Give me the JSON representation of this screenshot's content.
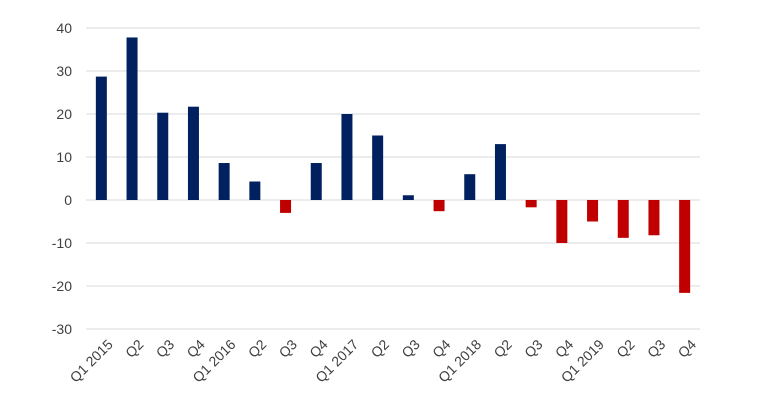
{
  "chart_data": {
    "type": "bar",
    "title": "",
    "xlabel": "",
    "ylabel": "",
    "categories": [
      "Q1 2015",
      "Q2",
      "Q3",
      "Q4",
      "Q1 2016",
      "Q2",
      "Q3",
      "Q4",
      "Q1 2017",
      "Q2",
      "Q3",
      "Q4",
      "Q1 2018",
      "Q2",
      "Q3",
      "Q4",
      "Q1 2019",
      "Q2",
      "Q3",
      "Q4"
    ],
    "values": [
      28.7,
      37.8,
      20.3,
      21.7,
      8.6,
      4.3,
      -3.0,
      8.6,
      20.0,
      15.0,
      1.1,
      -2.6,
      6.0,
      13.0,
      -1.7,
      -10.0,
      -5.0,
      -8.8,
      -8.2,
      -21.6
    ],
    "ylim": [
      -30,
      40
    ],
    "yticks": [
      -30,
      -20,
      -10,
      0,
      10,
      20,
      30,
      40
    ],
    "grid": true,
    "legend": "none",
    "colors": {
      "positive": "#002060",
      "negative": "#C00000",
      "grid": "#D9D9D9",
      "text": "#404040"
    }
  }
}
